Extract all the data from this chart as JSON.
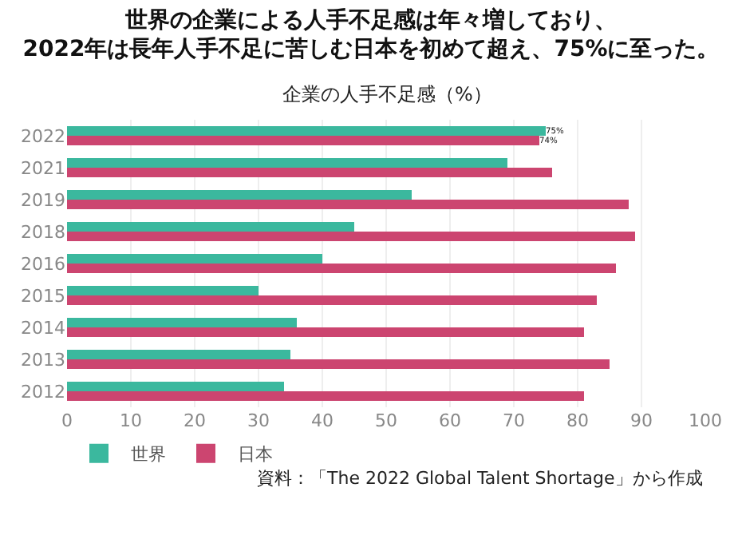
{
  "chart_data": {
    "type": "bar",
    "orientation": "horizontal",
    "title": "世界の企業による人手不足感は年々増しており、\n2022年は長年人手不足に苦しむ日本を初めて超え、75%に至った。",
    "subtitle": "企業の人手不足感（%）",
    "categories": [
      "2022",
      "2021",
      "2019",
      "2018",
      "2016",
      "2015",
      "2014",
      "2013",
      "2012"
    ],
    "series": [
      {
        "name": "世界",
        "color": "#3bb89e",
        "values": [
          75,
          69,
          54,
          45,
          40,
          30,
          36,
          35,
          34
        ],
        "value_labels": [
          "75%",
          null,
          null,
          null,
          null,
          null,
          null,
          null,
          null
        ]
      },
      {
        "name": "日本",
        "color": "#cc4570",
        "values": [
          74,
          76,
          88,
          89,
          86,
          83,
          81,
          85,
          81
        ],
        "value_labels": [
          "74%",
          null,
          null,
          null,
          null,
          null,
          null,
          null,
          null
        ]
      }
    ],
    "xlim": [
      0,
      100
    ],
    "xticks": [
      0,
      10,
      20,
      30,
      40,
      50,
      60,
      70,
      80,
      90,
      100
    ],
    "grid": "x",
    "legend": "bottom left",
    "annotations": [
      "資料：「The 2022 Global Talent Shortage」から作成"
    ]
  }
}
